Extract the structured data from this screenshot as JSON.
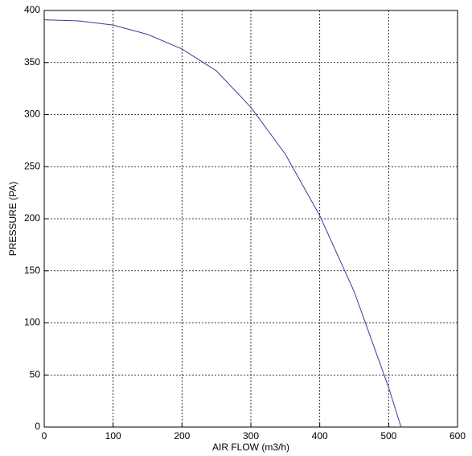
{
  "chart_data": {
    "type": "line",
    "x_label": "AIR FLOW (m3/h)",
    "y_label": "PRESSURE (PA)",
    "x": [
      0,
      50,
      100,
      150,
      200,
      250,
      300,
      350,
      400,
      450,
      500,
      518
    ],
    "series": [
      {
        "color": "#3a3a9c",
        "values": [
          391,
          390,
          386,
          377,
          363,
          342,
          307,
          262,
          203,
          130,
          38,
          0
        ]
      }
    ],
    "xlim": [
      0,
      600
    ],
    "xticks": [
      0,
      100,
      200,
      300,
      400,
      500,
      600
    ],
    "ylim": [
      0,
      400
    ],
    "yticks": [
      0,
      50,
      100,
      150,
      200,
      250,
      300,
      350,
      400
    ],
    "grid": true
  }
}
